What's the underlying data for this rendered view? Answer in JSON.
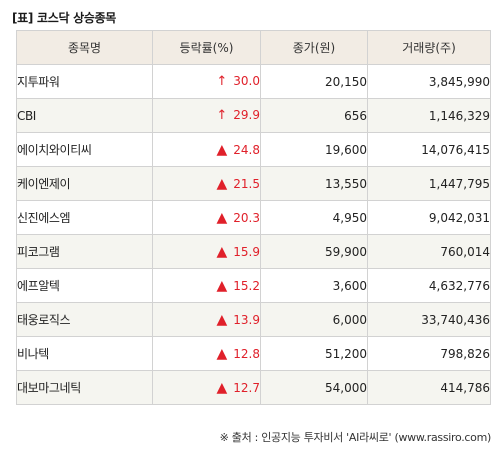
{
  "title": "[표] 코스닥 상승종목",
  "table": {
    "headers": [
      "종목명",
      "등락률(%)",
      "종가(원)",
      "거래량(주)"
    ],
    "rows": [
      {
        "name": "지투파워",
        "mark": "↑",
        "change": "30.0",
        "close": "20,150",
        "volume": "3,845,990"
      },
      {
        "name": "CBI",
        "mark": "↑",
        "change": "29.9",
        "close": "656",
        "volume": "1,146,329"
      },
      {
        "name": "에이치와이티씨",
        "mark": "▲",
        "change": "24.8",
        "close": "19,600",
        "volume": "14,076,415"
      },
      {
        "name": "케이엔제이",
        "mark": "▲",
        "change": "21.5",
        "close": "13,550",
        "volume": "1,447,795"
      },
      {
        "name": "신진에스엠",
        "mark": "▲",
        "change": "20.3",
        "close": "4,950",
        "volume": "9,042,031"
      },
      {
        "name": "피코그램",
        "mark": "▲",
        "change": "15.9",
        "close": "59,900",
        "volume": "760,014"
      },
      {
        "name": "에프알텍",
        "mark": "▲",
        "change": "15.2",
        "close": "3,600",
        "volume": "4,632,776"
      },
      {
        "name": "태웅로직스",
        "mark": "▲",
        "change": "13.9",
        "close": "6,000",
        "volume": "33,740,436"
      },
      {
        "name": "비나텍",
        "mark": "▲",
        "change": "12.8",
        "close": "51,200",
        "volume": "798,826"
      },
      {
        "name": "대보마그네틱",
        "mark": "▲",
        "change": "12.7",
        "close": "54,000",
        "volume": "414,786"
      }
    ]
  },
  "footer": "※ 출처 : 인공지능 투자비서 'AI라씨로' (www.rassiro.com)",
  "colors": {
    "up": "#e0202a",
    "header_bg": "#f2ece4",
    "stripe_bg": "#f5f5f0"
  }
}
